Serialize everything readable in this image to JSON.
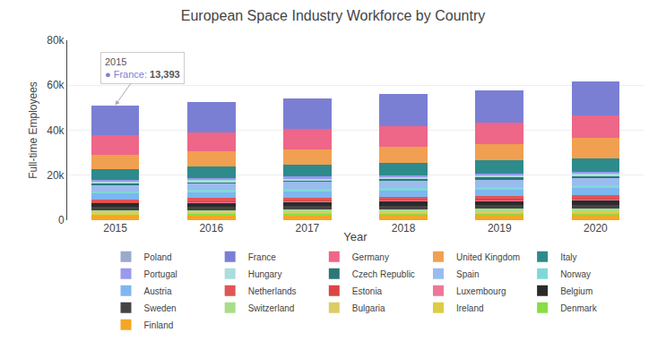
{
  "chart_data": {
    "type": "bar",
    "stacked": true,
    "title": "European Space Industry Workforce by Country",
    "xlabel": "Year",
    "ylabel": "Full-time Employees",
    "categories": [
      "2015",
      "2016",
      "2017",
      "2018",
      "2019",
      "2020"
    ],
    "series": [
      {
        "name": "Finland",
        "color": "#F5A623",
        "values": [
          2200,
          2300,
          2350,
          2400,
          2450,
          2500
        ]
      },
      {
        "name": "Denmark",
        "color": "#88DD44",
        "values": [
          500,
          550,
          580,
          600,
          620,
          650
        ]
      },
      {
        "name": "Ireland",
        "color": "#DDCC44",
        "values": [
          400,
          420,
          450,
          470,
          490,
          510
        ]
      },
      {
        "name": "Bulgaria",
        "color": "#DDCC66",
        "values": [
          300,
          320,
          340,
          360,
          380,
          400
        ]
      },
      {
        "name": "Switzerland",
        "color": "#AADD88",
        "values": [
          900,
          950,
          980,
          1000,
          1050,
          1100
        ]
      },
      {
        "name": "Sweden",
        "color": "#444444",
        "values": [
          1500,
          1550,
          1600,
          1650,
          1700,
          1750
        ]
      },
      {
        "name": "Belgium",
        "color": "#2B2B2B",
        "values": [
          1800,
          1850,
          1900,
          1950,
          2000,
          2050
        ]
      },
      {
        "name": "Luxembourg",
        "color": "#EE7799",
        "values": [
          350,
          370,
          390,
          410,
          430,
          450
        ]
      },
      {
        "name": "Estonia",
        "color": "#DD4444",
        "values": [
          200,
          220,
          240,
          260,
          280,
          300
        ]
      },
      {
        "name": "Netherlands",
        "color": "#E05555",
        "values": [
          1200,
          1250,
          1300,
          1350,
          1400,
          1450
        ]
      },
      {
        "name": "Austria",
        "color": "#7EB6F0",
        "values": [
          2500,
          2600,
          2700,
          2800,
          2900,
          3000
        ]
      },
      {
        "name": "Norway",
        "color": "#7FD8D8",
        "values": [
          1000,
          1050,
          1100,
          1150,
          1200,
          1250
        ]
      },
      {
        "name": "Spain",
        "color": "#99BBEE",
        "values": [
          2800,
          2900,
          3000,
          3100,
          3200,
          3300
        ]
      },
      {
        "name": "Czech Republic",
        "color": "#2E7777",
        "values": [
          700,
          750,
          800,
          850,
          900,
          950
        ]
      },
      {
        "name": "Hungary",
        "color": "#AADDDD",
        "values": [
          600,
          650,
          700,
          750,
          800,
          850
        ]
      },
      {
        "name": "Portugal",
        "color": "#9999EE",
        "values": [
          800,
          850,
          900,
          950,
          1000,
          1050
        ]
      },
      {
        "name": "Italy",
        "color": "#2E8B8B",
        "values": [
          5000,
          5200,
          5400,
          5600,
          5800,
          6000
        ]
      },
      {
        "name": "United Kingdom",
        "color": "#F0A050",
        "values": [
          6500,
          6700,
          6900,
          7100,
          7300,
          9000
        ]
      },
      {
        "name": "Germany",
        "color": "#EE6688",
        "values": [
          8500,
          8700,
          8900,
          9100,
          9300,
          10000
        ]
      },
      {
        "name": "France",
        "color": "#7B7FD4",
        "values": [
          13393,
          13500,
          13800,
          14200,
          14500,
          15000
        ]
      },
      {
        "name": "Poland",
        "color": "#99AACC",
        "values": [
          null,
          null,
          null,
          null,
          null,
          null
        ]
      }
    ],
    "ylim": [
      0,
      80000
    ],
    "yticks": [
      0,
      {
        "value": 20000,
        "label": "20k"
      },
      {
        "value": 40000,
        "label": "40k"
      },
      {
        "value": 60000,
        "label": "60k"
      },
      {
        "value": 80000,
        "label": "80k"
      }
    ],
    "grid": true,
    "legend": "bottom",
    "annotations": [
      {
        "category": "2015",
        "series": "France",
        "text": [
          "2015",
          "● France: ",
          "13,393"
        ]
      }
    ]
  }
}
